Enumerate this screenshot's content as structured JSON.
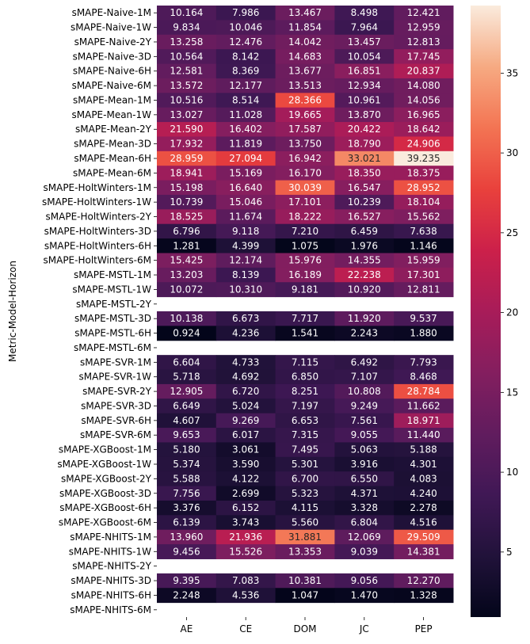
{
  "chart_data": {
    "type": "heatmap",
    "ylabel": "Metric-Model-Horizon",
    "xlabel": "",
    "columns": [
      "AE",
      "CE",
      "DOM",
      "JC",
      "PEP"
    ],
    "rows": [
      "sMAPE-Naive-1M",
      "sMAPE-Naive-1W",
      "sMAPE-Naive-2Y",
      "sMAPE-Naive-3D",
      "sMAPE-Naive-6H",
      "sMAPE-Naive-6M",
      "sMAPE-Mean-1M",
      "sMAPE-Mean-1W",
      "sMAPE-Mean-2Y",
      "sMAPE-Mean-3D",
      "sMAPE-Mean-6H",
      "sMAPE-Mean-6M",
      "sMAPE-HoltWinters-1M",
      "sMAPE-HoltWinters-1W",
      "sMAPE-HoltWinters-2Y",
      "sMAPE-HoltWinters-3D",
      "sMAPE-HoltWinters-6H",
      "sMAPE-HoltWinters-6M",
      "sMAPE-MSTL-1M",
      "sMAPE-MSTL-1W",
      "sMAPE-MSTL-2Y",
      "sMAPE-MSTL-3D",
      "sMAPE-MSTL-6H",
      "sMAPE-MSTL-6M",
      "sMAPE-SVR-1M",
      "sMAPE-SVR-1W",
      "sMAPE-SVR-2Y",
      "sMAPE-SVR-3D",
      "sMAPE-SVR-6H",
      "sMAPE-SVR-6M",
      "sMAPE-XGBoost-1M",
      "sMAPE-XGBoost-1W",
      "sMAPE-XGBoost-2Y",
      "sMAPE-XGBoost-3D",
      "sMAPE-XGBoost-6H",
      "sMAPE-XGBoost-6M",
      "sMAPE-NHITS-1M",
      "sMAPE-NHITS-1W",
      "sMAPE-NHITS-2Y",
      "sMAPE-NHITS-3D",
      "sMAPE-NHITS-6H",
      "sMAPE-NHITS-6M"
    ],
    "values": [
      [
        "10.164",
        "7.986",
        "13.467",
        "8.498",
        "12.421"
      ],
      [
        "9.834",
        "10.046",
        "11.854",
        "7.964",
        "12.959"
      ],
      [
        "13.258",
        "12.476",
        "14.042",
        "13.457",
        "12.813"
      ],
      [
        "10.564",
        "8.142",
        "14.683",
        "10.054",
        "17.745"
      ],
      [
        "12.581",
        "8.369",
        "13.677",
        "16.851",
        "20.837"
      ],
      [
        "13.572",
        "12.177",
        "13.513",
        "12.934",
        "14.080"
      ],
      [
        "10.516",
        "8.514",
        "28.366",
        "10.961",
        "14.056"
      ],
      [
        "13.027",
        "11.028",
        "19.665",
        "13.870",
        "16.965"
      ],
      [
        "21.590",
        "16.402",
        "17.587",
        "20.422",
        "18.642"
      ],
      [
        "17.932",
        "11.819",
        "13.750",
        "18.790",
        "24.906"
      ],
      [
        "28.959",
        "27.094",
        "16.942",
        "33.021",
        "39.235"
      ],
      [
        "18.941",
        "15.169",
        "16.170",
        "18.350",
        "18.375"
      ],
      [
        "15.198",
        "16.640",
        "30.039",
        "16.547",
        "28.952"
      ],
      [
        "10.739",
        "15.046",
        "17.101",
        "10.239",
        "18.104"
      ],
      [
        "18.525",
        "11.674",
        "18.222",
        "16.527",
        "15.562"
      ],
      [
        "6.796",
        "9.118",
        "7.210",
        "6.459",
        "7.638"
      ],
      [
        "1.281",
        "4.399",
        "1.075",
        "1.976",
        "1.146"
      ],
      [
        "15.425",
        "12.174",
        "15.976",
        "14.355",
        "15.959"
      ],
      [
        "13.203",
        "8.139",
        "16.189",
        "22.238",
        "17.301"
      ],
      [
        "10.072",
        "10.310",
        "9.181",
        "10.920",
        "12.811"
      ],
      [
        null,
        null,
        null,
        null,
        null
      ],
      [
        "10.138",
        "6.673",
        "7.717",
        "11.920",
        "9.537"
      ],
      [
        "0.924",
        "4.236",
        "1.541",
        "2.243",
        "1.880"
      ],
      [
        null,
        null,
        null,
        null,
        null
      ],
      [
        "6.604",
        "4.733",
        "7.115",
        "6.492",
        "7.793"
      ],
      [
        "5.718",
        "4.692",
        "6.850",
        "7.107",
        "8.468"
      ],
      [
        "12.905",
        "6.720",
        "8.251",
        "10.808",
        "28.784"
      ],
      [
        "6.649",
        "5.024",
        "7.197",
        "9.249",
        "11.662"
      ],
      [
        "4.607",
        "9.269",
        "6.653",
        "7.561",
        "18.971"
      ],
      [
        "9.653",
        "6.017",
        "7.315",
        "9.055",
        "11.440"
      ],
      [
        "5.180",
        "3.061",
        "7.495",
        "5.063",
        "5.188"
      ],
      [
        "5.374",
        "3.590",
        "5.301",
        "3.916",
        "4.301"
      ],
      [
        "5.588",
        "4.122",
        "6.700",
        "6.550",
        "4.083"
      ],
      [
        "7.756",
        "2.699",
        "5.323",
        "4.371",
        "4.240"
      ],
      [
        "3.376",
        "6.152",
        "4.115",
        "3.328",
        "2.278"
      ],
      [
        "6.139",
        "3.743",
        "5.560",
        "6.804",
        "4.516"
      ],
      [
        "13.960",
        "21.936",
        "31.881",
        "12.069",
        "29.509"
      ],
      [
        "9.456",
        "15.526",
        "13.353",
        "9.039",
        "14.381"
      ],
      [
        null,
        null,
        null,
        null,
        null
      ],
      [
        "9.395",
        "7.083",
        "10.381",
        "9.056",
        "12.270"
      ],
      [
        "2.248",
        "4.536",
        "1.047",
        "1.470",
        "1.328"
      ],
      [
        null,
        null,
        null,
        null,
        null
      ]
    ],
    "colorbar": {
      "colormap": "rocket",
      "vmin": 0.924,
      "vmax": 39.235,
      "ticks": [
        "5",
        "10",
        "15",
        "20",
        "25",
        "30",
        "35"
      ]
    },
    "grid": false,
    "legend": "colorbar-right"
  }
}
